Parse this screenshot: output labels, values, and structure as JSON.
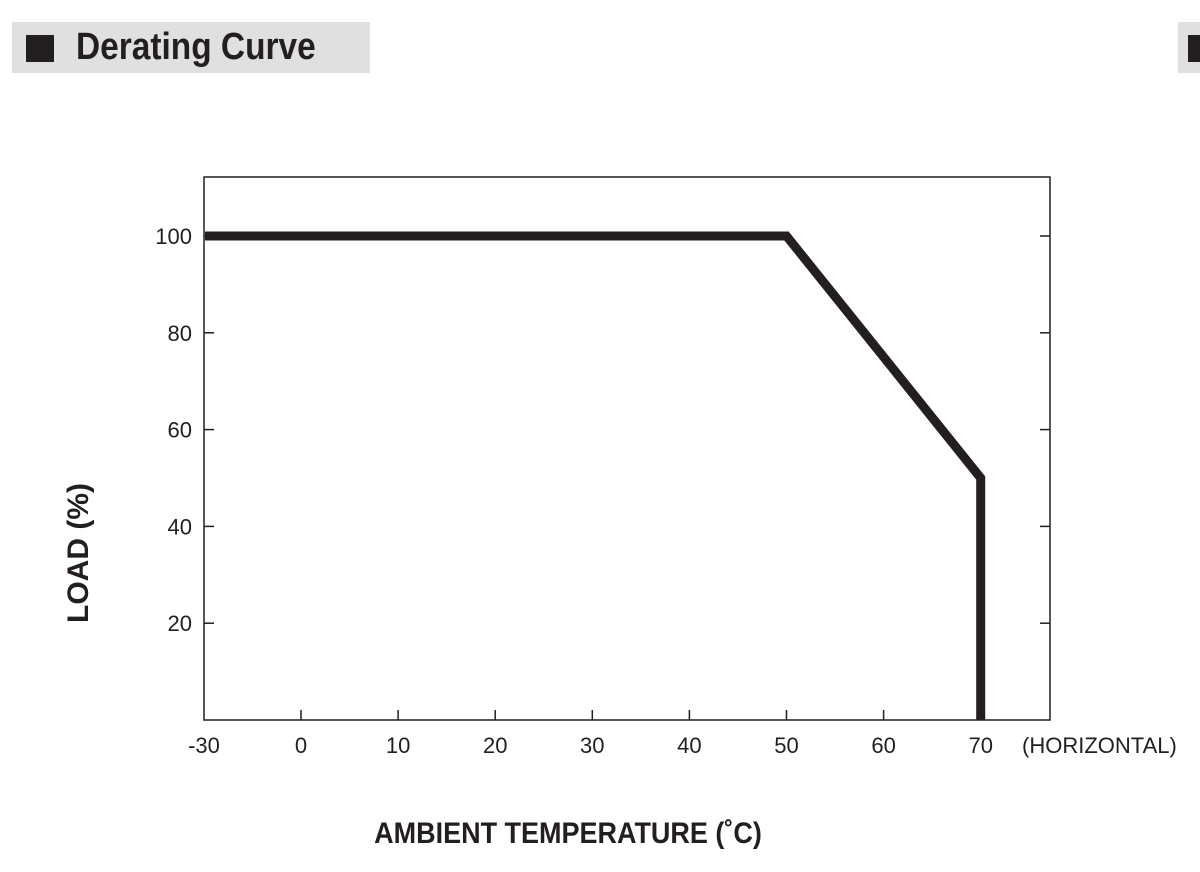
{
  "header": {
    "title": "Derating Curve"
  },
  "chart_data": {
    "type": "line",
    "title": "",
    "xlabel": "AMBIENT TEMPERATURE (˚C)",
    "ylabel": "LOAD (%)",
    "x_annotation": "(HORIZONTAL)",
    "xlim": [
      -30,
      75
    ],
    "ylim": [
      0,
      112
    ],
    "x_ticks": [
      -30,
      0,
      10,
      20,
      30,
      40,
      50,
      60,
      70
    ],
    "x_tick_labels": [
      "-30",
      "0",
      "10",
      "20",
      "30",
      "40",
      "50",
      "60",
      "70"
    ],
    "y_ticks": [
      20,
      40,
      60,
      80,
      100
    ],
    "y_tick_labels": [
      "20",
      "40",
      "60",
      "80",
      "100"
    ],
    "grid": false,
    "line_color": "#231f20",
    "series": [
      {
        "x": [
          -30,
          50,
          70,
          70
        ],
        "y": [
          100,
          100,
          50,
          0
        ]
      }
    ]
  }
}
